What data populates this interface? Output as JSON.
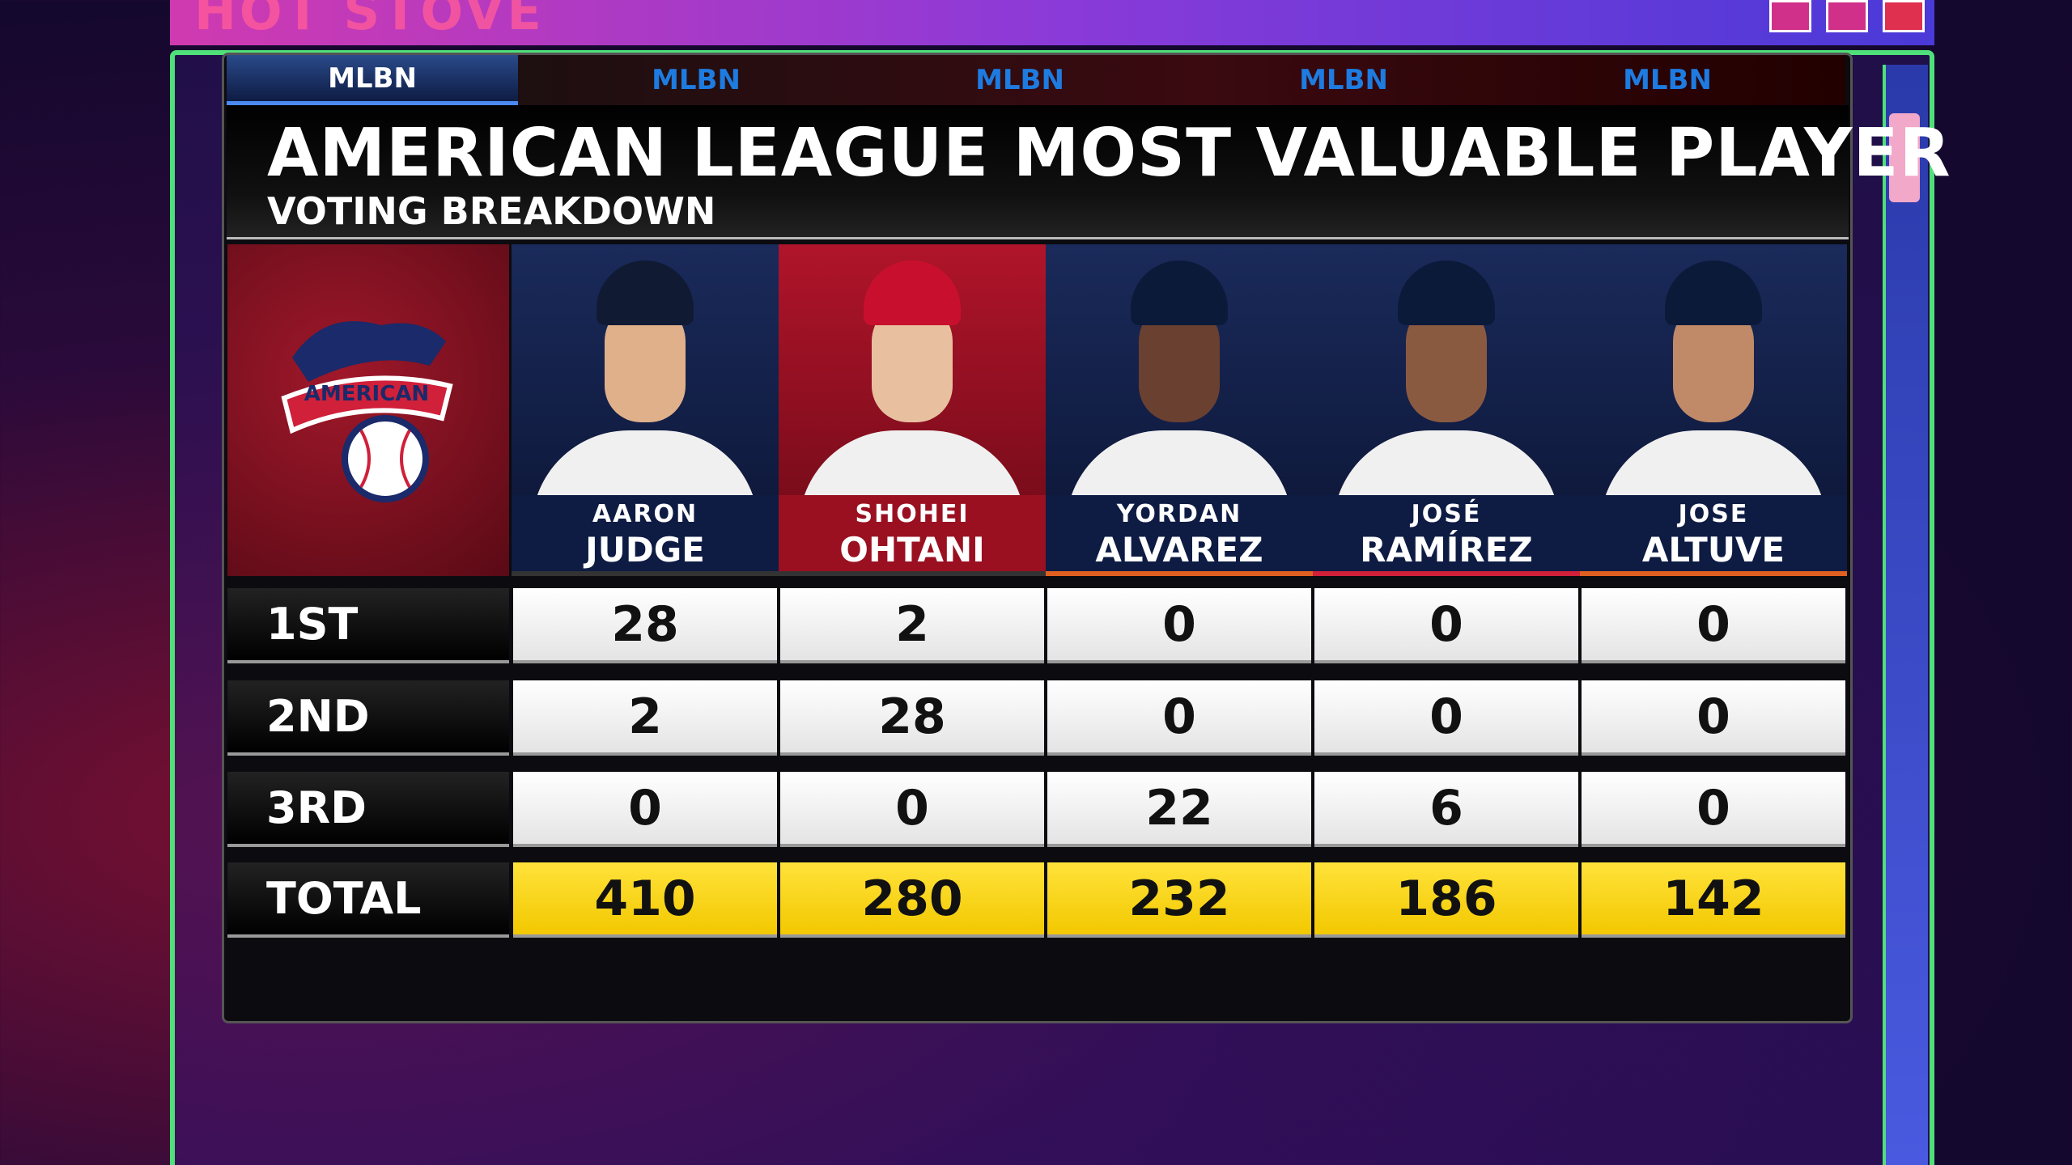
{
  "show": "HOT STOVE",
  "tabs": [
    "MLBN",
    "MLBN",
    "MLBN",
    "MLBN",
    "MLBN"
  ],
  "header": {
    "title": "AMERICAN LEAGUE MOST VALUABLE PLAYER",
    "subtitle": "VOTING BREAKDOWN"
  },
  "logo": "AMERICAN",
  "table": {
    "columns": [
      {
        "first": "AARON",
        "last": "JUDGE"
      },
      {
        "first": "SHOHEI",
        "last": "OHTANI"
      },
      {
        "first": "YORDAN",
        "last": "ALVAREZ"
      },
      {
        "first": "JOSÉ",
        "last": "RAMÍREZ"
      },
      {
        "first": "JOSE",
        "last": "ALTUVE"
      }
    ],
    "rows": [
      {
        "label": "1ST",
        "values": [
          28,
          2,
          0,
          0,
          0
        ]
      },
      {
        "label": "2ND",
        "values": [
          2,
          28,
          0,
          0,
          0
        ]
      },
      {
        "label": "3RD",
        "values": [
          0,
          0,
          22,
          6,
          0
        ]
      },
      {
        "label": "TOTAL",
        "values": [
          410,
          280,
          232,
          186,
          142
        ]
      }
    ]
  }
}
